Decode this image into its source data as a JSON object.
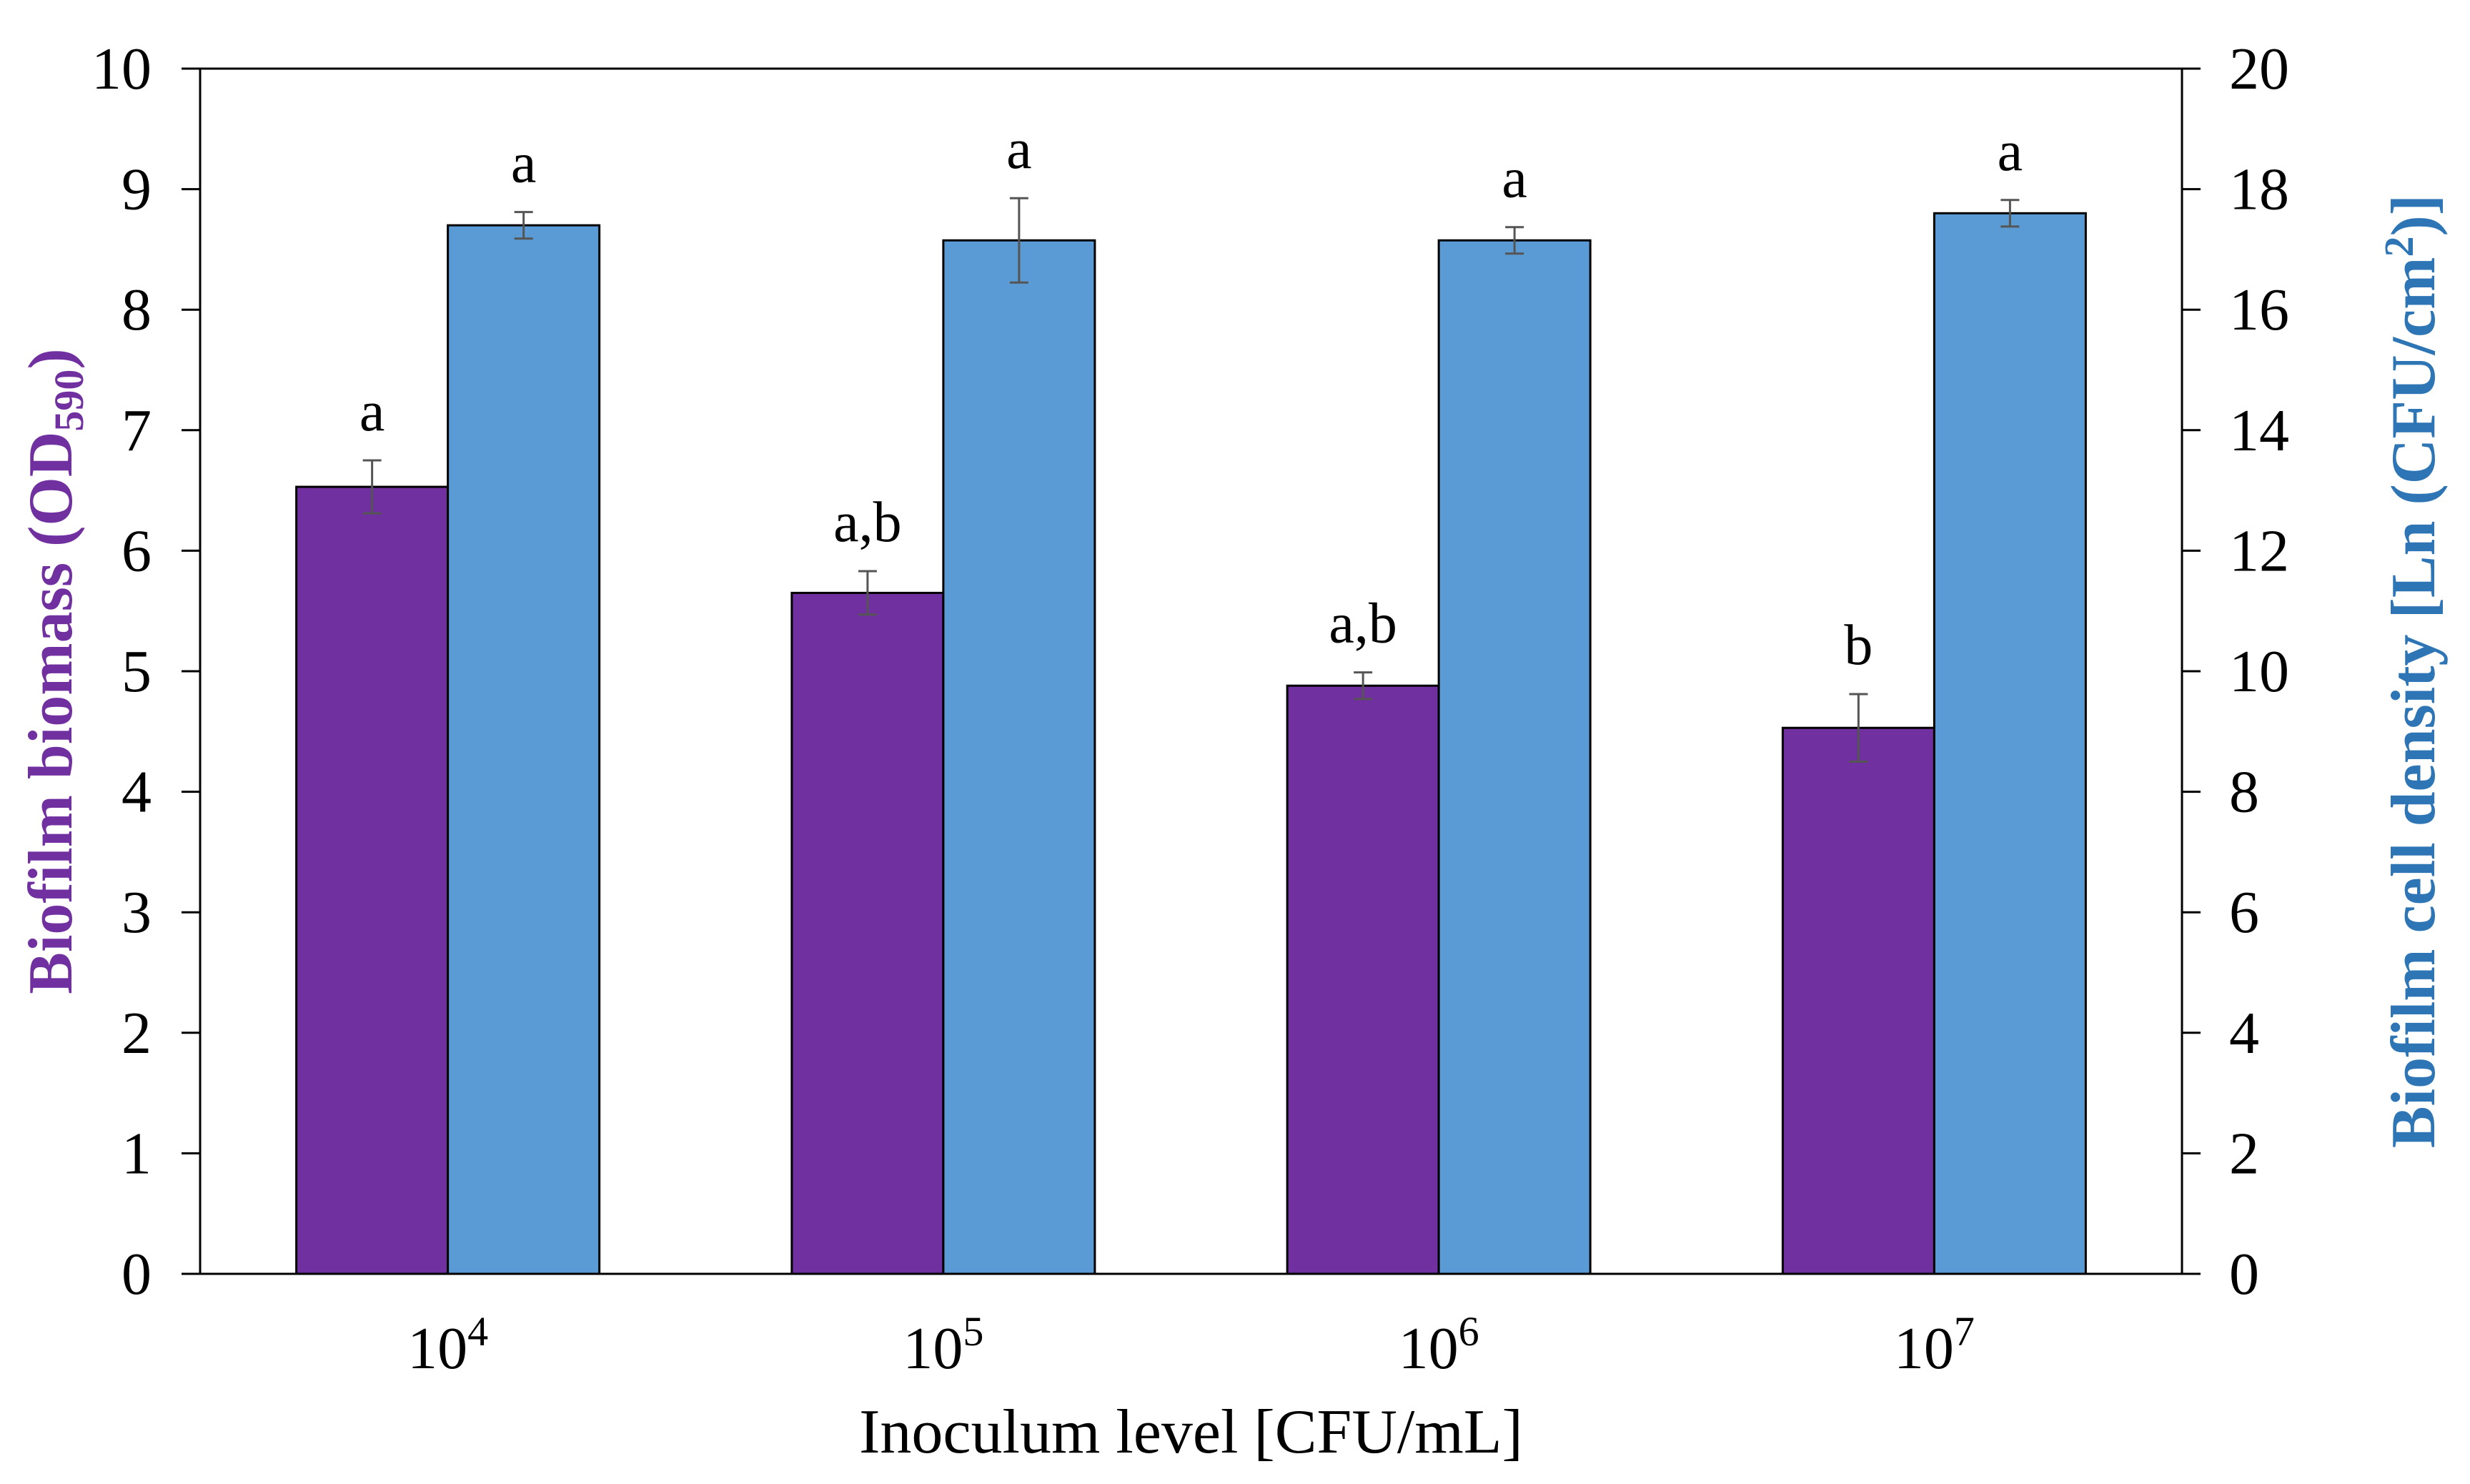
{
  "chart_data": {
    "type": "bar",
    "categories": [
      {
        "base": "10",
        "exp": "4"
      },
      {
        "base": "10",
        "exp": "5"
      },
      {
        "base": "10",
        "exp": "6"
      },
      {
        "base": "10",
        "exp": "7"
      }
    ],
    "xlabel": "Inoculum level [CFU/mL]",
    "ylabel_left": {
      "main": "Biofilm biomass (OD",
      "sub": "590",
      "end": ")"
    },
    "ylabel_right": {
      "main": "Biofilm cell density [Ln (CFU/cm",
      "sup": "2",
      "end": ")]"
    },
    "ylim_left": [
      0,
      10
    ],
    "ylim_right": [
      0,
      20
    ],
    "yticks_left": [
      0,
      1,
      2,
      3,
      4,
      5,
      6,
      7,
      8,
      9,
      10
    ],
    "yticks_right": [
      0,
      2,
      4,
      6,
      8,
      10,
      12,
      14,
      16,
      18,
      20
    ],
    "grid": false,
    "legend": "none",
    "series": [
      {
        "axis": "left",
        "color": "#7030A0",
        "values": [
          6.53,
          5.65,
          4.88,
          4.53
        ],
        "errors": [
          0.22,
          0.18,
          0.11,
          0.28
        ],
        "labels": [
          "a",
          "a,b",
          "a,b",
          "b"
        ]
      },
      {
        "axis": "right",
        "color": "#5B9BD5",
        "values": [
          17.4,
          17.15,
          17.15,
          17.6
        ],
        "errors": [
          0.22,
          0.7,
          0.22,
          0.22
        ],
        "labels": [
          "a",
          "a",
          "a",
          "a"
        ]
      }
    ],
    "title_colors": {
      "left": "#7030A0",
      "right": "#2E75B6"
    }
  }
}
